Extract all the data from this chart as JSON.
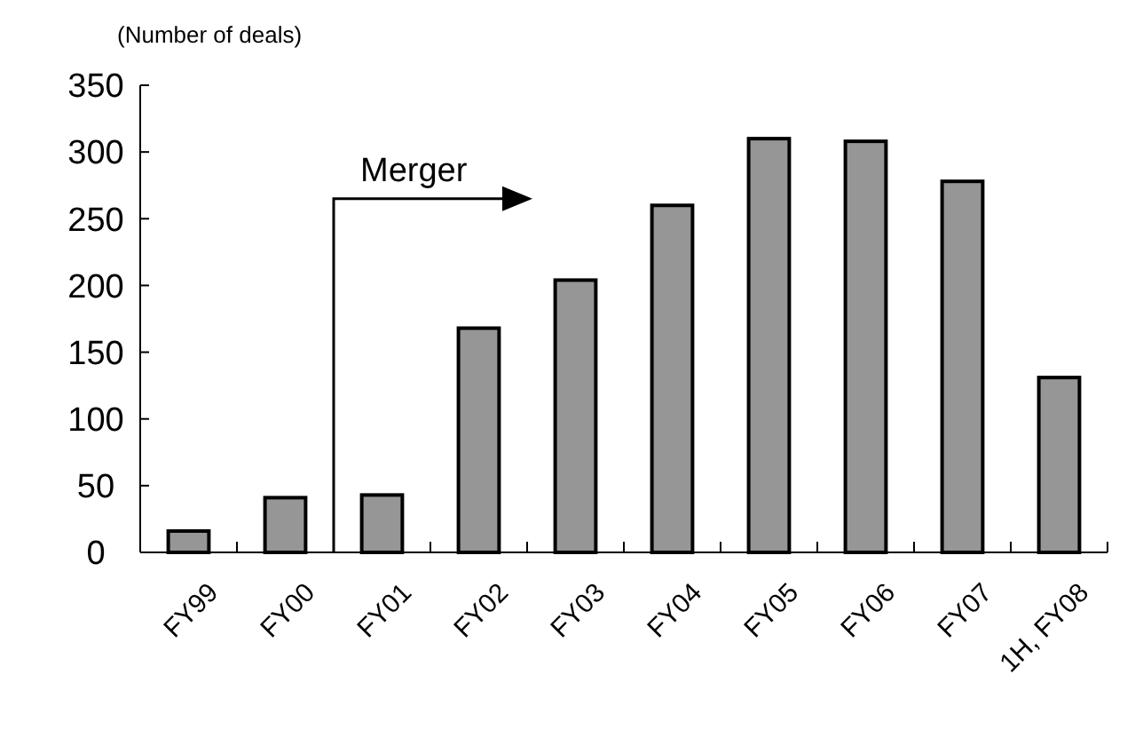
{
  "chart_data": {
    "type": "bar",
    "ylabel": "(Number of deals)",
    "categories": [
      "FY99",
      "FY00",
      "FY01",
      "FY02",
      "FY03",
      "FY04",
      "FY05",
      "FY06",
      "FY07",
      "1H, FY08"
    ],
    "values": [
      16,
      41,
      43,
      168,
      204,
      260,
      310,
      308,
      278,
      131
    ],
    "color": "#969696",
    "ylim": [
      0,
      350
    ],
    "yticks": [
      0,
      50,
      100,
      150,
      200,
      250,
      300,
      350
    ],
    "grid": false,
    "annotations": [
      "Merger"
    ]
  }
}
